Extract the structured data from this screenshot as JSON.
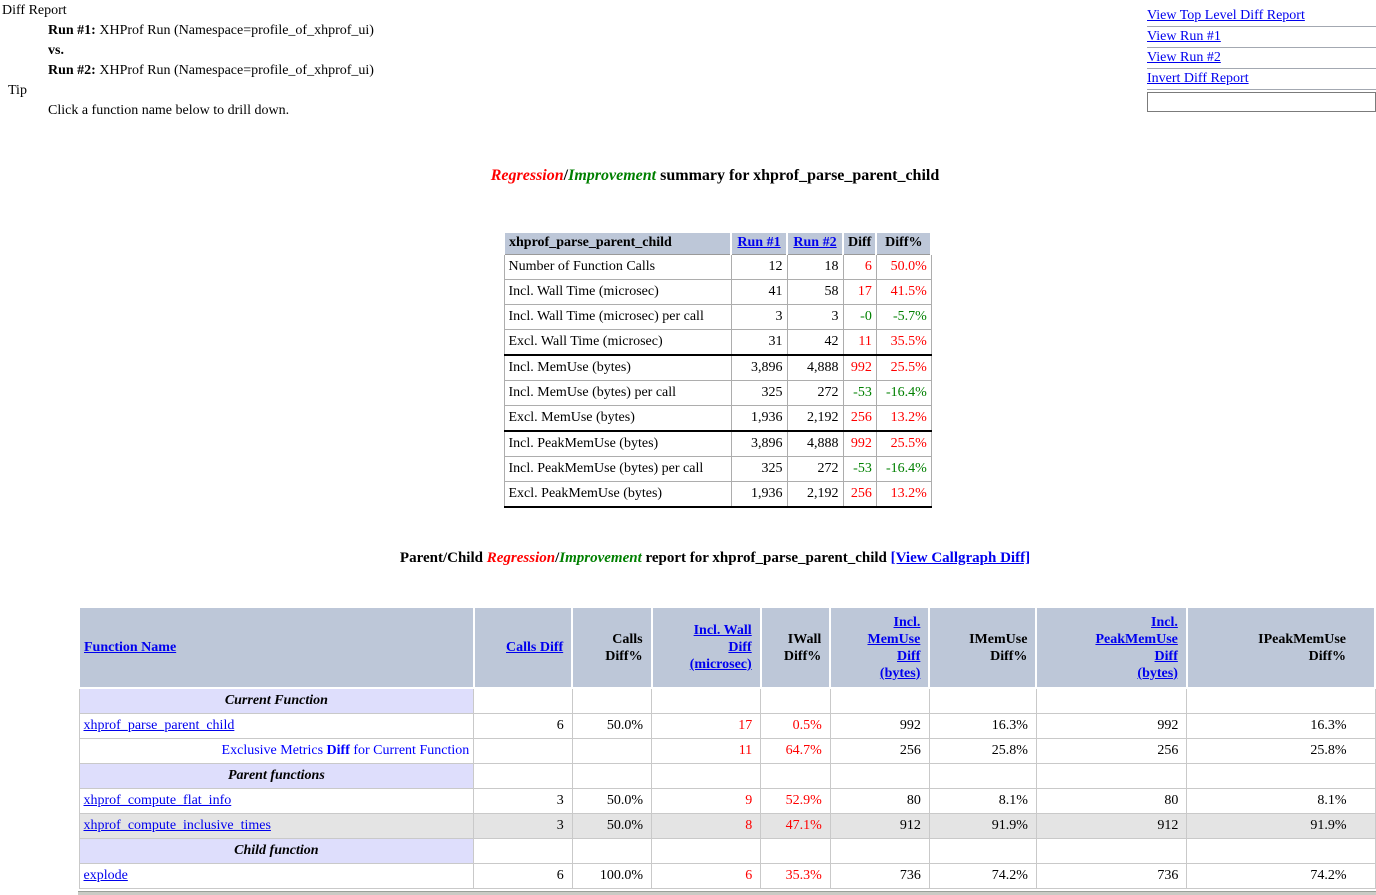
{
  "page": {
    "diff_report_label": "Diff Report",
    "run1_label": "Run #1:",
    "run1_text": "XHProf Run (Namespace=profile_of_xhprof_ui)",
    "vs_label": "vs.",
    "run2_label": "Run #2:",
    "run2_text": "XHProf Run (Namespace=profile_of_xhprof_ui)",
    "tip_label": "Tip",
    "tip_text": "Click a function name below to drill down."
  },
  "menu": {
    "links": [
      {
        "label": "View Top Level Diff Report",
        "name": "view-top-level-diff-report"
      },
      {
        "label": "View Run #1",
        "name": "view-run-1"
      },
      {
        "label": "View Run #2",
        "name": "view-run-2"
      },
      {
        "label": "Invert Diff Report",
        "name": "invert-diff-report"
      }
    ],
    "search_value": ""
  },
  "summary": {
    "title": {
      "regression": "Regression",
      "sep": "/",
      "improvement": "Improvement",
      "rest": " summary for xhprof_parse_parent_child"
    },
    "table": {
      "header": {
        "name": "xhprof_parse_parent_child",
        "run1": "Run #1",
        "run2": "Run #2",
        "diff": "Diff",
        "diffpct": "Diff%"
      },
      "rows": [
        {
          "metric": "Number of Function Calls",
          "run1": "12",
          "run2": "18",
          "diff": "6",
          "diff_c": "red",
          "pct": "50.0%",
          "pct_c": "red",
          "group_end": false
        },
        {
          "metric": "Incl. Wall Time (microsec)",
          "run1": "41",
          "run2": "58",
          "diff": "17",
          "diff_c": "red",
          "pct": "41.5%",
          "pct_c": "red",
          "group_end": false
        },
        {
          "metric": "Incl. Wall Time (microsec) per call",
          "run1": "3",
          "run2": "3",
          "diff": "-0",
          "diff_c": "green",
          "pct": "-5.7%",
          "pct_c": "green",
          "group_end": false
        },
        {
          "metric": "Excl. Wall Time (microsec)",
          "run1": "31",
          "run2": "42",
          "diff": "11",
          "diff_c": "red",
          "pct": "35.5%",
          "pct_c": "red",
          "group_end": true
        },
        {
          "metric": "Incl. MemUse (bytes)",
          "run1": "3,896",
          "run2": "4,888",
          "diff": "992",
          "diff_c": "red",
          "pct": "25.5%",
          "pct_c": "red",
          "group_end": false
        },
        {
          "metric": "Incl. MemUse (bytes) per call",
          "run1": "325",
          "run2": "272",
          "diff": "-53",
          "diff_c": "green",
          "pct": "-16.4%",
          "pct_c": "green",
          "group_end": false
        },
        {
          "metric": "Excl. MemUse (bytes)",
          "run1": "1,936",
          "run2": "2,192",
          "diff": "256",
          "diff_c": "red",
          "pct": "13.2%",
          "pct_c": "red",
          "group_end": true
        },
        {
          "metric": "Incl. PeakMemUse (bytes)",
          "run1": "3,896",
          "run2": "4,888",
          "diff": "992",
          "diff_c": "red",
          "pct": "25.5%",
          "pct_c": "red",
          "group_end": false
        },
        {
          "metric": "Incl. PeakMemUse (bytes) per call",
          "run1": "325",
          "run2": "272",
          "diff": "-53",
          "diff_c": "green",
          "pct": "-16.4%",
          "pct_c": "green",
          "group_end": false
        },
        {
          "metric": "Excl. PeakMemUse (bytes)",
          "run1": "1,936",
          "run2": "2,192",
          "diff": "256",
          "diff_c": "red",
          "pct": "13.2%",
          "pct_c": "red",
          "group_end": true
        }
      ]
    }
  },
  "report": {
    "title": {
      "prefix": "Parent/Child ",
      "regression": "Regression",
      "sep": "/",
      "improvement": "Improvement",
      "mid": " report for xhprof_parse_parent_child ",
      "callgraph_link": "[View Callgraph Diff]"
    },
    "table": {
      "headers": [
        {
          "lines": [
            "Function Name"
          ],
          "link": true,
          "name": "function-name"
        },
        {
          "lines": [
            "Calls Diff"
          ],
          "link": true,
          "name": "calls-diff"
        },
        {
          "lines": [
            "Calls",
            "Diff%"
          ],
          "link": false,
          "name": "calls-diff-pct"
        },
        {
          "lines": [
            "Incl. Wall",
            "Diff",
            "(microsec)"
          ],
          "link": true,
          "name": "incl-wall-diff"
        },
        {
          "lines": [
            "IWall",
            "Diff%"
          ],
          "link": false,
          "name": "iwall-diff-pct"
        },
        {
          "lines": [
            "Incl.",
            "MemUse",
            "Diff",
            "(bytes)"
          ],
          "link": true,
          "name": "incl-memuse-diff"
        },
        {
          "lines": [
            "IMemUse",
            "Diff%"
          ],
          "link": false,
          "name": "imemuse-diff-pct"
        },
        {
          "lines": [
            "Incl.",
            "PeakMemUse",
            "Diff",
            "(bytes)"
          ],
          "link": true,
          "name": "incl-peakmemuse-diff"
        },
        {
          "lines": [
            "IPeakMemUse",
            "Diff%"
          ],
          "link": false,
          "name": "ipeakmemuse-diff-pct"
        }
      ],
      "rows": [
        {
          "type": "banner",
          "label": "Current Function"
        },
        {
          "type": "function",
          "label": "xhprof_parse_parent_child",
          "shaded": false,
          "values": [
            {
              "t": "6"
            },
            {
              "t": "50.0%"
            },
            {
              "t": "17",
              "c": "red"
            },
            {
              "t": "0.5%",
              "c": "red"
            },
            {
              "t": "992"
            },
            {
              "t": "16.3%"
            },
            {
              "t": "992"
            },
            {
              "t": "16.3%"
            }
          ]
        },
        {
          "type": "exclusive",
          "label_parts": [
            "Exclusive Metrics ",
            "Diff",
            " for Current Function"
          ],
          "shaded": false,
          "values": [
            {
              "t": ""
            },
            {
              "t": ""
            },
            {
              "t": "11",
              "c": "red"
            },
            {
              "t": "64.7%",
              "c": "red"
            },
            {
              "t": "256"
            },
            {
              "t": "25.8%"
            },
            {
              "t": "256"
            },
            {
              "t": "25.8%"
            }
          ]
        },
        {
          "type": "banner",
          "label": "Parent functions"
        },
        {
          "type": "function",
          "label": "xhprof_compute_flat_info",
          "shaded": false,
          "values": [
            {
              "t": "3"
            },
            {
              "t": "50.0%"
            },
            {
              "t": "9",
              "c": "red"
            },
            {
              "t": "52.9%",
              "c": "red"
            },
            {
              "t": "80"
            },
            {
              "t": "8.1%"
            },
            {
              "t": "80"
            },
            {
              "t": "8.1%"
            }
          ]
        },
        {
          "type": "function",
          "label": "xhprof_compute_inclusive_times",
          "shaded": true,
          "values": [
            {
              "t": "3"
            },
            {
              "t": "50.0%"
            },
            {
              "t": "8",
              "c": "red"
            },
            {
              "t": "47.1%",
              "c": "red"
            },
            {
              "t": "912"
            },
            {
              "t": "91.9%"
            },
            {
              "t": "912"
            },
            {
              "t": "91.9%"
            }
          ]
        },
        {
          "type": "banner",
          "label": "Child function"
        },
        {
          "type": "function",
          "label": "explode",
          "shaded": false,
          "values": [
            {
              "t": "6"
            },
            {
              "t": "100.0%"
            },
            {
              "t": "6",
              "c": "red"
            },
            {
              "t": "35.3%",
              "c": "red"
            },
            {
              "t": "736"
            },
            {
              "t": "74.2%"
            },
            {
              "t": "736"
            },
            {
              "t": "74.2%"
            }
          ]
        }
      ]
    }
  },
  "colors": {
    "regression": "#ff0000",
    "improvement": "#008000",
    "link": "#0000ee",
    "header_bg": "#bdc7d8",
    "banner_bg": "#dedefc",
    "shaded_bg": "#e4e4e4",
    "exclusive_text": "#0000ff"
  }
}
